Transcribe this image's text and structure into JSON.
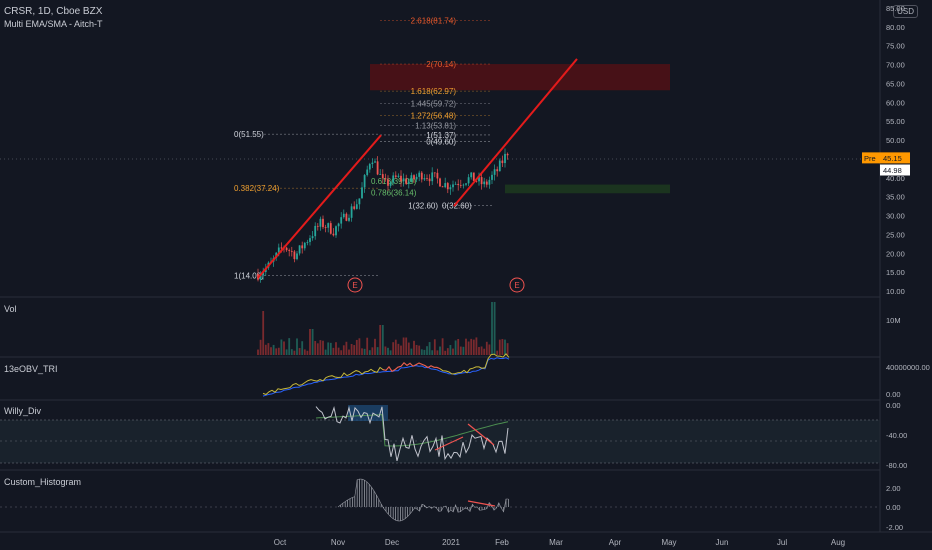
{
  "header": {
    "symbol_line": "CRSR, 1D, Cboe BZX",
    "indicator_line": "Multi EMA/SMA - Aitch-T",
    "currency": "USD"
  },
  "panes": {
    "vol": "Vol",
    "obv": "13eOBV_TRI",
    "willy": "Willy_Div",
    "hist": "Custom_Histogram"
  },
  "colors": {
    "background": "#131722",
    "up": "#26a69a",
    "down": "#ef5350",
    "trend": "#e31b1b",
    "pre_label": "#ff9800",
    "fib_red": "#e8592b",
    "fib_orange": "#f0a030",
    "fib_grey": "#9598a1",
    "fib_green": "#66bb6a"
  },
  "chart_data": [
    {
      "type": "line",
      "name": "price",
      "ylim": [
        10,
        85
      ],
      "y_ticks": [
        "85.00",
        "80.00",
        "75.00",
        "70.00",
        "65.00",
        "60.00",
        "55.00",
        "50.00",
        "45.00",
        "40.00",
        "35.00",
        "30.00",
        "25.00",
        "20.00",
        "15.00",
        "10.00"
      ],
      "x_labels": [
        "Oct",
        "Nov",
        "Dec",
        "2021",
        "Feb",
        "Mar",
        "Apr",
        "May",
        "Jun",
        "Jul",
        "Aug"
      ],
      "x": [
        "Sep 23",
        "Sep 30",
        "Oct 7",
        "Oct 14",
        "Oct 21",
        "Oct 28",
        "Nov 4",
        "Nov 11",
        "Nov 18",
        "Nov 24",
        "Dec 1",
        "Dec 8",
        "Dec 15",
        "Dec 22",
        "Dec 29",
        "Jan 5",
        "Jan 12",
        "Jan 19",
        "Jan 26",
        "Feb 2",
        "Feb 5"
      ],
      "close": [
        14.5,
        17,
        22,
        19.5,
        24,
        28,
        26,
        30,
        34,
        46,
        38,
        40,
        39,
        41,
        40,
        38,
        39,
        40,
        38,
        42,
        48
      ],
      "last_price": "44.98",
      "pre_market": {
        "label": "Pre",
        "value": "45.15"
      },
      "fib_labels": [
        "2.618(81.74)",
        "2(70.14)",
        "1.618(62.97)",
        "1.445(59.72)",
        "1.272(56.48)",
        "1.13(53.81)",
        "1(51.37)",
        "0(49.60)",
        "0(51.55)",
        "0.382(37.24)",
        "0.618(39.09)",
        "0.786(36.14)",
        "1(32.60)",
        "0(32.60)",
        "1(14.09)"
      ],
      "event_markers": [
        "E",
        "E"
      ]
    },
    {
      "type": "bar",
      "name": "Vol",
      "y_ticks": [
        "10M"
      ]
    },
    {
      "type": "line",
      "name": "13eOBV_TRI",
      "y_ticks": [
        "40000000.00",
        "0.00"
      ]
    },
    {
      "type": "line",
      "name": "Willy_Div",
      "y_ticks": [
        "0.00",
        "-40.00",
        "-80.00"
      ]
    },
    {
      "type": "bar",
      "name": "Custom_Histogram",
      "y_ticks": [
        "2.00",
        "0.00",
        "-2.00"
      ]
    }
  ]
}
